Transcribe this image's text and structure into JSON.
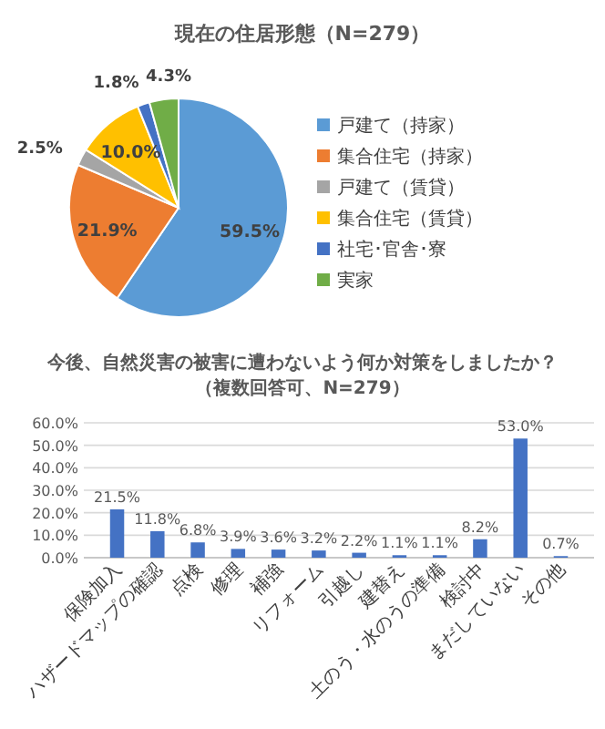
{
  "chart_data": [
    {
      "type": "pie",
      "title": "現在の住居形態（N=279）",
      "categories": [
        "戸建て（持家）",
        "集合住宅（持家）",
        "戸建て（賃貸）",
        "集合住宅（賃貸）",
        "社宅･官舎･寮",
        "実家"
      ],
      "values": [
        59.5,
        21.9,
        2.5,
        10.0,
        1.8,
        4.3
      ],
      "value_labels": [
        "59.5%",
        "21.9%",
        "2.5%",
        "10.0%",
        "1.8%",
        "4.3%"
      ],
      "colors": [
        "#5b9bd5",
        "#ed7d31",
        "#a5a5a5",
        "#ffc000",
        "#4472c4",
        "#70ad47"
      ],
      "legend": "right"
    },
    {
      "type": "bar",
      "title": "今後、自然災害の被害に遭わないよう何か対策をしましたか？",
      "subtitle": "（複数回答可、N=279）",
      "categories": [
        "保険加入",
        "ハザードマップの確認",
        "点検",
        "修理",
        "補強",
        "リフォーム",
        "引越し",
        "建替え",
        "土のう・水のうの準備",
        "検討中",
        "まだしていない",
        "その他"
      ],
      "values": [
        21.5,
        11.8,
        6.8,
        3.9,
        3.6,
        3.2,
        2.2,
        1.1,
        1.1,
        8.2,
        53.0,
        0.7
      ],
      "value_labels": [
        "21.5%",
        "11.8%",
        "6.8%",
        "3.9%",
        "3.6%",
        "3.2%",
        "2.2%",
        "1.1%",
        "1.1%",
        "8.2%",
        "53.0%",
        "0.7%"
      ],
      "color": "#4472c4",
      "ylim": [
        0,
        60
      ],
      "yticks": [
        {
          "value": 0,
          "label": "0.0%"
        },
        {
          "value": 10,
          "label": "10.0%"
        },
        {
          "value": 20,
          "label": "20.0%"
        },
        {
          "value": 30,
          "label": "30.0%"
        },
        {
          "value": 40,
          "label": "40.0%"
        },
        {
          "value": 50,
          "label": "50.0%"
        },
        {
          "value": 60,
          "label": "60.0%"
        }
      ],
      "grid": "y"
    }
  ]
}
